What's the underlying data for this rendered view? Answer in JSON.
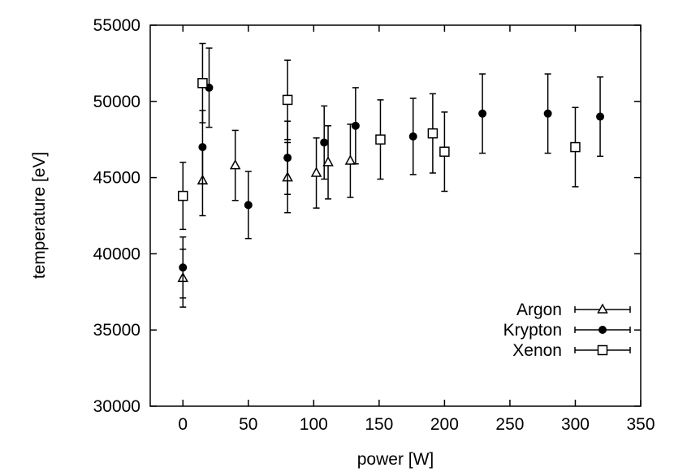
{
  "chart_data": {
    "type": "scatter",
    "title": "",
    "xlabel": "power [W]",
    "ylabel": "temperature [eV]",
    "xlim": [
      -25,
      350
    ],
    "ylim": [
      30000,
      55000
    ],
    "x_ticks": [
      "0",
      "50",
      "100",
      "150",
      "200",
      "250",
      "300",
      "350"
    ],
    "y_ticks": [
      "30000",
      "35000",
      "40000",
      "45000",
      "50000",
      "55000"
    ],
    "grid": false,
    "legend_position": "bottom-right",
    "series": [
      {
        "name": "Argon",
        "marker": "open-triangle",
        "points": [
          {
            "x": 0,
            "y": 38400,
            "err": 1900
          },
          {
            "x": 15,
            "y": 44800,
            "err": 2300
          },
          {
            "x": 40,
            "y": 45800,
            "err": 2300
          },
          {
            "x": 80,
            "y": 45000,
            "err": 2300
          },
          {
            "x": 102,
            "y": 45300,
            "err": 2300
          },
          {
            "x": 111,
            "y": 46000,
            "err": 2400
          },
          {
            "x": 128,
            "y": 46100,
            "err": 2400
          }
        ]
      },
      {
        "name": "Krypton",
        "marker": "filled-circle",
        "points": [
          {
            "x": 0,
            "y": 39100,
            "err": 2000
          },
          {
            "x": 15,
            "y": 47000,
            "err": 2400
          },
          {
            "x": 20,
            "y": 50900,
            "err": 2600
          },
          {
            "x": 50,
            "y": 43200,
            "err": 2200
          },
          {
            "x": 80,
            "y": 46300,
            "err": 2400
          },
          {
            "x": 108,
            "y": 47300,
            "err": 2400
          },
          {
            "x": 132,
            "y": 48400,
            "err": 2500
          },
          {
            "x": 176,
            "y": 47700,
            "err": 2500
          },
          {
            "x": 229,
            "y": 49200,
            "err": 2600
          },
          {
            "x": 279,
            "y": 49200,
            "err": 2600
          },
          {
            "x": 319,
            "y": 49000,
            "err": 2600
          }
        ]
      },
      {
        "name": "Xenon",
        "marker": "open-square",
        "points": [
          {
            "x": 0,
            "y": 43800,
            "err": 2200
          },
          {
            "x": 15,
            "y": 51200,
            "err": 2600
          },
          {
            "x": 80,
            "y": 50100,
            "err": 2600
          },
          {
            "x": 151,
            "y": 47500,
            "err": 2600
          },
          {
            "x": 191,
            "y": 47900,
            "err": 2600
          },
          {
            "x": 200,
            "y": 46700,
            "err": 2600
          },
          {
            "x": 300,
            "y": 47000,
            "err": 2600
          }
        ]
      }
    ]
  }
}
